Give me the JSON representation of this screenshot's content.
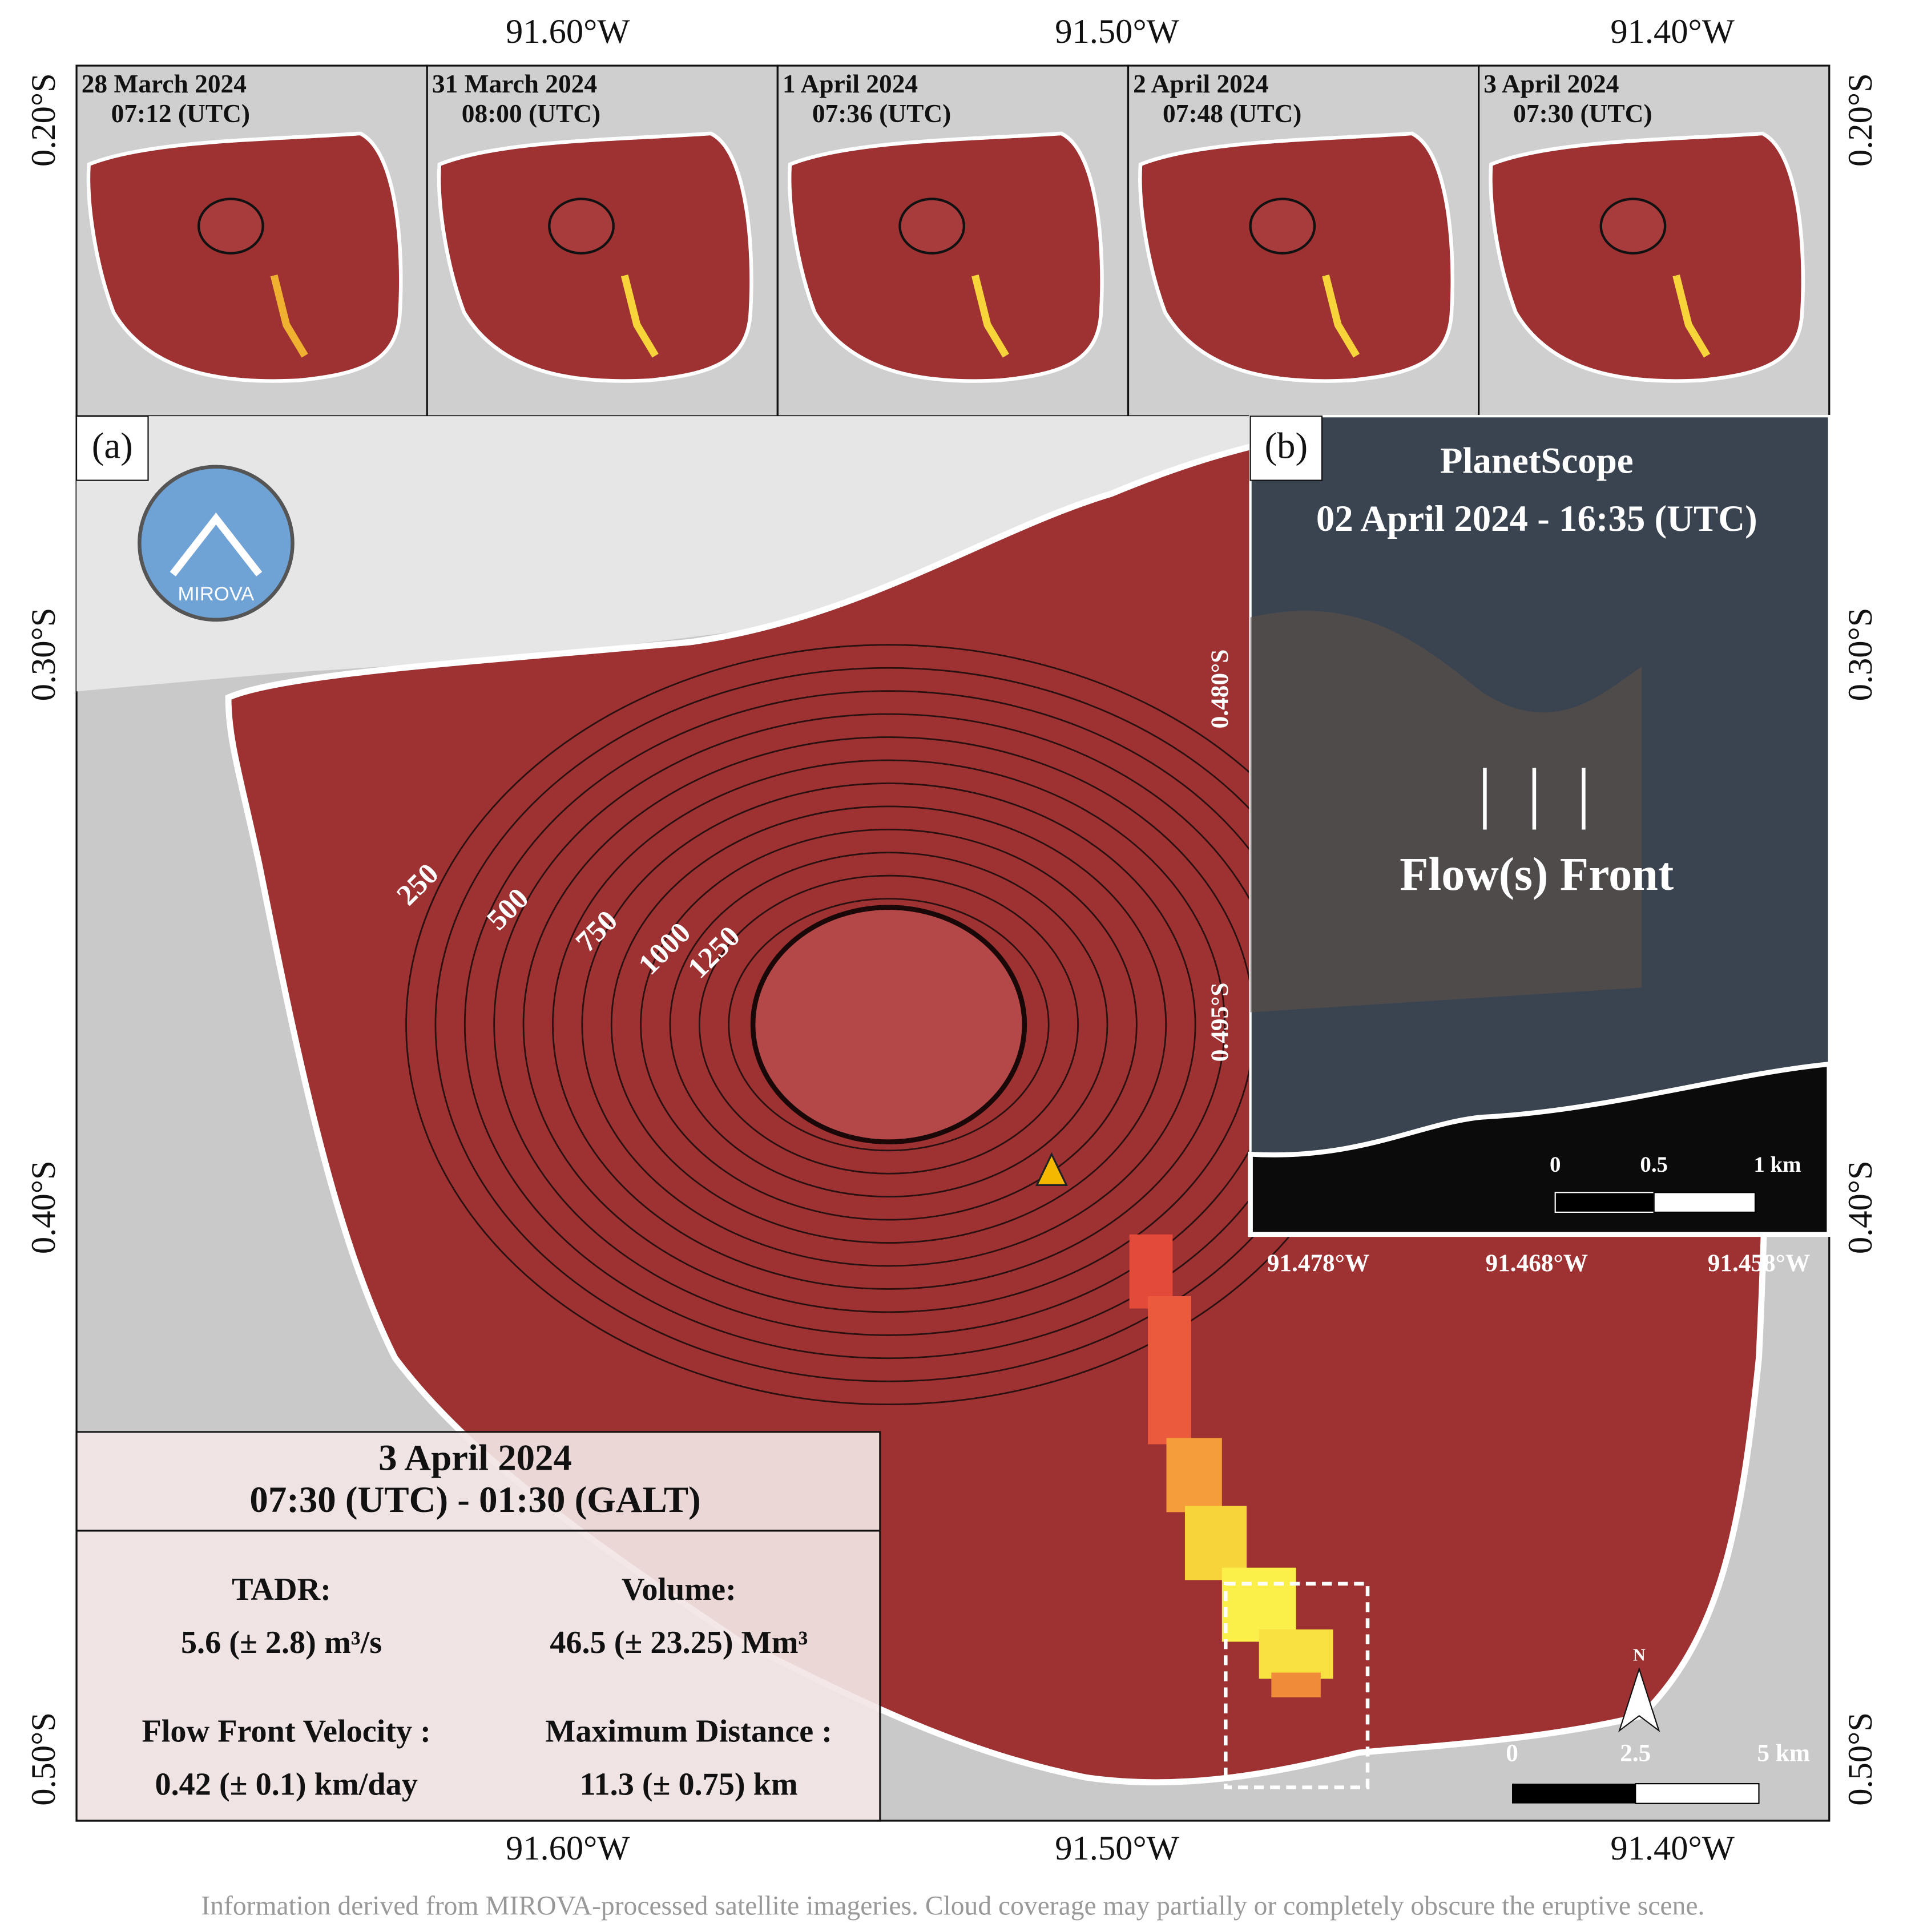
{
  "thumbnails": [
    {
      "date": "28 March 2024",
      "time": "07:12 (UTC)"
    },
    {
      "date": "31 March 2024",
      "time": "08:00 (UTC)"
    },
    {
      "date": "1 April 2024",
      "time": "07:36 (UTC)"
    },
    {
      "date": "2 April 2024",
      "time": "07:48 (UTC)"
    },
    {
      "date": "3 April 2024",
      "time": "07:30 (UTC)"
    }
  ],
  "axes": {
    "top": [
      "91.60°W",
      "91.50°W",
      "91.40°W"
    ],
    "bottom": [
      "91.60°W",
      "91.50°W",
      "91.40°W"
    ],
    "left": [
      "0.20°S",
      "0.30°S",
      "0.40°S",
      "0.50°S"
    ],
    "right": [
      "0.20°S",
      "0.30°S",
      "0.40°S",
      "0.50°S"
    ]
  },
  "main": {
    "label": "(a)",
    "logo": "MIROVA",
    "contours": [
      "250",
      "500",
      "750",
      "1000",
      "1250"
    ],
    "inset_lat": [
      "0.480°S",
      "0.495°S"
    ]
  },
  "info": {
    "date": "3 April 2024",
    "time": "07:30 (UTC) - 01:30 (GALT)",
    "items": [
      {
        "label": "TADR:",
        "value": "5.6 (± 2.8) m³/s"
      },
      {
        "label": "Volume:",
        "value": "46.5 (± 23.25) Mm³"
      },
      {
        "label": "Flow Front Velocity :",
        "value": "0.42 (± 0.1) km/day"
      },
      {
        "label": "Maximum Distance :",
        "value": "11.3 (± 0.75) km"
      }
    ]
  },
  "inset": {
    "label": "(b)",
    "title": "PlanetScope",
    "subtitle": "02 April 2024 - 16:35 (UTC)",
    "annotation": "Flow(s) Front",
    "scale": [
      "0",
      "0.5",
      "1 km"
    ],
    "lon": [
      "91.478°W",
      "91.468°W",
      "91.458°W"
    ]
  },
  "scale_bar": {
    "labels": [
      "0",
      "2.5",
      "5 km"
    ],
    "north": "N"
  },
  "footer": "Information derived from MIROVA-processed satellite imageries. Cloud coverage may partially or completely obscure the eruptive scene."
}
